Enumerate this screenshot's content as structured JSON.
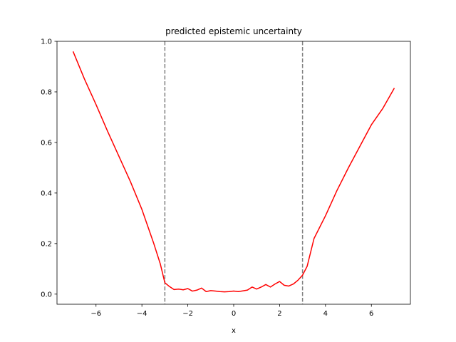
{
  "chart_data": {
    "type": "line",
    "title": "predicted epistemic uncertainty",
    "xlabel": "x",
    "ylabel": "",
    "xlim": [
      -7.7,
      7.7
    ],
    "ylim": [
      -0.04,
      1.0
    ],
    "xticks": [
      -6,
      -4,
      -2,
      0,
      2,
      4,
      6
    ],
    "yticks": [
      0.0,
      0.2,
      0.4,
      0.6,
      0.8,
      1.0
    ],
    "xtick_labels": [
      "−6",
      "−4",
      "−2",
      "0",
      "2",
      "4",
      "6"
    ],
    "ytick_labels": [
      "0.0",
      "0.2",
      "0.4",
      "0.6",
      "0.8",
      "1.0"
    ],
    "grid": false,
    "vlines": [
      {
        "x": -3,
        "color": "#808080",
        "style": "dashed"
      },
      {
        "x": 3,
        "color": "#808080",
        "style": "dashed"
      }
    ],
    "series": [
      {
        "color": "#ff0000",
        "x": [
          -7.0,
          -6.5,
          -6.0,
          -5.5,
          -5.0,
          -4.5,
          -4.0,
          -3.5,
          -3.2,
          -3.0,
          -2.8,
          -2.6,
          -2.4,
          -2.2,
          -2.0,
          -1.8,
          -1.6,
          -1.4,
          -1.2,
          -1.0,
          -0.8,
          -0.6,
          -0.4,
          -0.2,
          0.0,
          0.2,
          0.4,
          0.6,
          0.8,
          1.0,
          1.2,
          1.4,
          1.6,
          1.8,
          2.0,
          2.2,
          2.4,
          2.6,
          2.8,
          3.0,
          3.2,
          3.5,
          4.0,
          4.5,
          5.0,
          5.5,
          6.0,
          6.5,
          7.0
        ],
        "values": [
          0.96,
          0.85,
          0.75,
          0.645,
          0.545,
          0.445,
          0.335,
          0.205,
          0.12,
          0.045,
          0.03,
          0.018,
          0.02,
          0.017,
          0.022,
          0.012,
          0.016,
          0.024,
          0.01,
          0.014,
          0.012,
          0.01,
          0.009,
          0.01,
          0.012,
          0.01,
          0.013,
          0.016,
          0.028,
          0.02,
          0.028,
          0.038,
          0.028,
          0.04,
          0.05,
          0.035,
          0.032,
          0.04,
          0.055,
          0.075,
          0.11,
          0.22,
          0.31,
          0.41,
          0.5,
          0.585,
          0.67,
          0.735,
          0.815
        ]
      }
    ]
  }
}
